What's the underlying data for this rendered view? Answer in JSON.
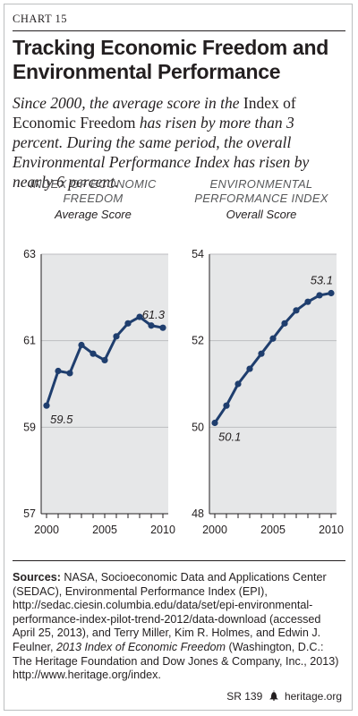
{
  "header": {
    "chart_label": "CHART 15",
    "title_line1": "Tracking Economic Freedom and",
    "title_line2": "Environmental Performance",
    "subtitle_p1": "Since 2000, the average score in the",
    "subtitle_p2": "Index of Economic Freedom",
    "subtitle_p3": "has risen by more than 3 percent. During the same period, the overall Environmental Performance Index has risen by nearly 6 percent."
  },
  "colors": {
    "line": "#1f3e6e",
    "axis": "#231f20",
    "grid": "#bcbec0",
    "panel_bg": "#e6e7e8"
  },
  "chart_data": [
    {
      "type": "line",
      "title_line1": "INDEX OF ECONOMIC",
      "title_line2": "FREEDOM",
      "subtitle": "Average Score",
      "x": [
        2000,
        2001,
        2002,
        2003,
        2004,
        2005,
        2006,
        2007,
        2008,
        2009,
        2010
      ],
      "values": [
        59.5,
        60.3,
        60.25,
        60.9,
        60.7,
        60.55,
        61.1,
        61.4,
        61.55,
        61.35,
        61.3
      ],
      "ylim": [
        57,
        63
      ],
      "yticks": [
        "57",
        "59",
        "61",
        "63"
      ],
      "ytick_values": [
        57,
        59,
        61,
        63
      ],
      "xticks": [
        "2000",
        "2005",
        "2010"
      ],
      "xtick_values": [
        2000,
        2005,
        2010
      ],
      "labels": {
        "start": "59.5",
        "end": "61.3"
      }
    },
    {
      "type": "line",
      "title_line1": "ENVIRONMENTAL",
      "title_line2": "PERFORMANCE INDEX",
      "subtitle": "Overall Score",
      "x": [
        2000,
        2001,
        2002,
        2003,
        2004,
        2005,
        2006,
        2007,
        2008,
        2009,
        2010
      ],
      "values": [
        50.1,
        50.5,
        51.0,
        51.35,
        51.7,
        52.05,
        52.4,
        52.7,
        52.9,
        53.05,
        53.1
      ],
      "ylim": [
        48,
        54
      ],
      "yticks": [
        "48",
        "50",
        "52",
        "54"
      ],
      "ytick_values": [
        48,
        50,
        52,
        54
      ],
      "xticks": [
        "2000",
        "2005",
        "2010"
      ],
      "xtick_values": [
        2000,
        2005,
        2010
      ],
      "labels": {
        "start": "50.1",
        "end": "53.1"
      }
    }
  ],
  "sources": {
    "label": "Sources:",
    "text_p1": "NASA, Socioeconomic Data and Applications Center (SEDAC), Environmental Performance Index (EPI), http://sedac.ciesin.columbia.edu/data/set/epi-environmental-performance-index-pilot-trend-2012/data-download (accessed April 25, 2013), and Terry Miller, Kim R. Holmes, and Edwin J. Feulner,",
    "text_p2_italic": "2013 Index of Economic Freedom",
    "text_p3": "(Washington, D.C.: The Heritage Foundation and Dow Jones & Company, Inc., 2013) http://www.heritage.org/index."
  },
  "footer": {
    "code": "SR 139",
    "icon": "liberty-bell-icon",
    "site": "heritage.org"
  }
}
